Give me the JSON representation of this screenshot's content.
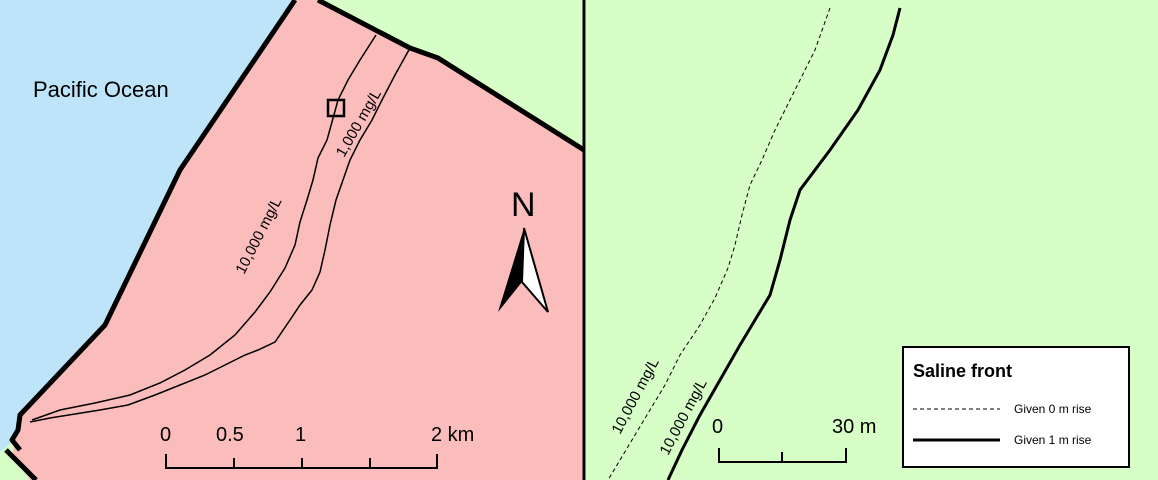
{
  "left_panel": {
    "ocean_label": "Pacific Ocean",
    "contour_10000": "10,000 mg/L",
    "contour_1000": "1,000 mg/L",
    "north_label": "N",
    "scale": {
      "ticks": [
        "0",
        "0.5",
        "1",
        "2 km"
      ]
    }
  },
  "right_panel": {
    "front_0m_label": "10,000 mg/L",
    "front_1m_label": "10,000 mg/L",
    "scale": {
      "ticks": [
        "0",
        "30 m"
      ]
    },
    "legend": {
      "title": "Saline front",
      "items": [
        {
          "label": "Given 0 m rise",
          "style": "dashed"
        },
        {
          "label": "Given 1 m rise",
          "style": "solid"
        }
      ]
    }
  },
  "colors": {
    "ocean": "#bde4f8",
    "aquifer": "#fbbcbc",
    "land": "#d6fec6",
    "line": "#000000"
  }
}
